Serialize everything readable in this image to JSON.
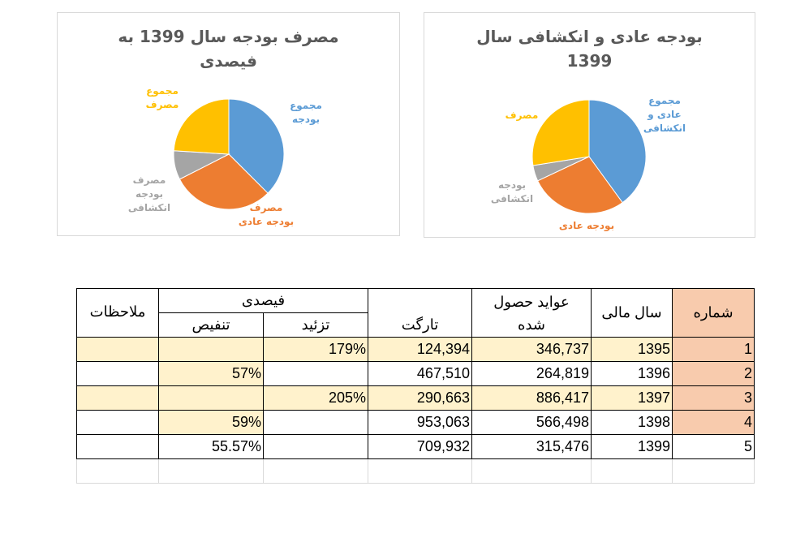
{
  "charts": [
    {
      "title_line1": "مصرف بودجه سال 1399 به",
      "title_line2": "فیصدی",
      "slices": [
        {
          "label_lines": [
            "مجموع",
            "بودجه"
          ],
          "value": 37.5,
          "color": "#5b9bd5"
        },
        {
          "label_lines": [
            "مصرف",
            "بودجه  عادی"
          ],
          "value": 30,
          "color": "#ed7d31"
        },
        {
          "label_lines": [
            "مصرف",
            "بودجه",
            "انکشافی"
          ],
          "value": 8.5,
          "color": "#a5a5a5"
        },
        {
          "label_lines": [
            "مجموع",
            "مصرف"
          ],
          "value": 24,
          "color": "#ffc000"
        }
      ]
    },
    {
      "title_line1": "بودجه عادی و انکشافی سال",
      "title_line2": "1399",
      "slices": [
        {
          "label_lines": [
            "مجموع",
            "عادی و",
            "انکشافی"
          ],
          "value": 40,
          "color": "#5b9bd5"
        },
        {
          "label_lines": [
            "بودجه عادی"
          ],
          "value": 28,
          "color": "#ed7d31"
        },
        {
          "label_lines": [
            "بودجه",
            "انکشافی"
          ],
          "value": 4.5,
          "color": "#a5a5a5"
        },
        {
          "label_lines": [
            "مصرف"
          ],
          "value": 27.5,
          "color": "#ffc000"
        }
      ]
    }
  ],
  "table": {
    "headers": {
      "number": "شماره",
      "fiscal_year": "سال مالی",
      "revenue_line1": "عواید حصول",
      "revenue_line2": "شده",
      "target": "تارگت",
      "percent": "فیصدی",
      "increase": "تزئید",
      "decrease": "تنفیص",
      "remarks": "ملاحظات"
    },
    "rows": [
      {
        "number": "1",
        "year": "1395",
        "revenue": "346,737",
        "target": "124,394",
        "increase": "179%",
        "decrease": "",
        "remarks": ""
      },
      {
        "number": "2",
        "year": "1396",
        "revenue": "264,819",
        "target": "467,510",
        "increase": "",
        "decrease": "57%",
        "remarks": ""
      },
      {
        "number": "3",
        "year": "1397",
        "revenue": "886,417",
        "target": "290,663",
        "increase": "205%",
        "decrease": "",
        "remarks": ""
      },
      {
        "number": "4",
        "year": "1398",
        "revenue": "566,498",
        "target": "953,063",
        "increase": "",
        "decrease": "59%",
        "remarks": ""
      },
      {
        "number": "5",
        "year": "1399",
        "revenue": "315,476",
        "target": "709,932",
        "increase": "",
        "decrease": "55.57%",
        "remarks": ""
      }
    ]
  }
}
